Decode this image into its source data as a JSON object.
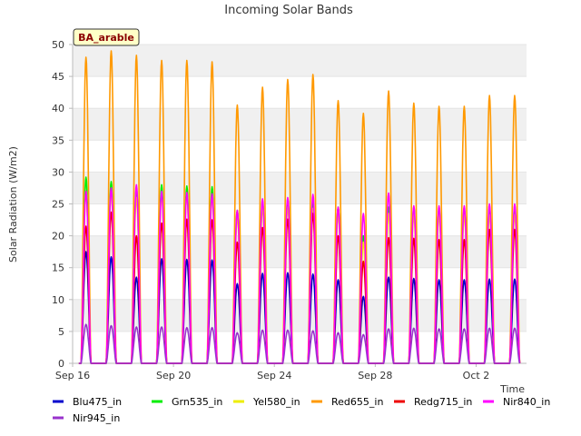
{
  "chart_data": {
    "type": "line",
    "title": "Incoming Solar Bands",
    "xlabel": "Time",
    "ylabel": "Solar Radiation (W/m2)",
    "site_tag": "BA_arable",
    "ylim": [
      0,
      50
    ],
    "yticks": [
      0,
      5,
      10,
      15,
      20,
      25,
      30,
      35,
      40,
      45,
      50
    ],
    "x_range_days": [
      "2024-09-16",
      "2024-10-04"
    ],
    "xticks": [
      {
        "date": "2024-09-16",
        "label": "Sep 16"
      },
      {
        "date": "2024-09-20",
        "label": "Sep 20"
      },
      {
        "date": "2024-09-24",
        "label": "Sep 24"
      },
      {
        "date": "2024-09-28",
        "label": "Sep 28"
      },
      {
        "date": "2024-10-02",
        "label": "Oct 2"
      }
    ],
    "grid": "horizontal-bands",
    "legend_position": "bottom",
    "daily_dates": [
      "2024-09-16",
      "2024-09-17",
      "2024-09-18",
      "2024-09-19",
      "2024-09-20",
      "2024-09-21",
      "2024-09-22",
      "2024-09-23",
      "2024-09-24",
      "2024-09-25",
      "2024-09-26",
      "2024-09-27",
      "2024-09-28",
      "2024-09-29",
      "2024-09-30",
      "2024-10-01",
      "2024-10-02",
      "2024-10-03"
    ],
    "series": [
      {
        "name": "Blu475_in",
        "color": "#0000cc",
        "daily_peak": [
          17.5,
          16.7,
          13.5,
          16.4,
          16.3,
          16.2,
          12.5,
          14.1,
          14.2,
          14.0,
          13.1,
          10.5,
          13.5,
          13.3,
          13.1,
          13.1,
          13.2,
          13.2
        ]
      },
      {
        "name": "Grn535_in",
        "color": "#00ee00",
        "daily_peak": [
          29.2,
          28.5,
          27.5,
          28.0,
          27.8,
          27.7,
          24.0,
          25.5,
          25.8,
          25.5,
          24.5,
          20.0,
          24.5,
          24.5,
          24.3,
          24.3,
          24.5,
          24.5
        ]
      },
      {
        "name": "Yel580_in",
        "color": "#eeee00",
        "daily_peak": [
          27.0,
          27.0,
          26.0,
          26.5,
          26.5,
          26.3,
          23.0,
          24.5,
          24.5,
          24.3,
          23.5,
          19.0,
          23.5,
          23.3,
          23.3,
          23.3,
          23.3,
          23.3
        ]
      },
      {
        "name": "Red655_in",
        "color": "#ff9900",
        "daily_peak": [
          48.0,
          49.0,
          48.3,
          47.5,
          47.5,
          47.3,
          40.5,
          43.3,
          44.5,
          45.3,
          41.2,
          39.2,
          42.7,
          40.8,
          40.3,
          40.3,
          42.0,
          42.0
        ]
      },
      {
        "name": "Redg715_in",
        "color": "#ee0000",
        "daily_peak": [
          21.5,
          23.7,
          20.0,
          22.0,
          22.6,
          22.5,
          19.0,
          21.3,
          22.6,
          23.5,
          20.0,
          16.0,
          19.7,
          19.6,
          19.4,
          19.4,
          21.0,
          21.0
        ]
      },
      {
        "name": "Nir840_in",
        "color": "#ff00ff",
        "daily_peak": [
          27.0,
          27.5,
          28.0,
          27.0,
          26.8,
          26.6,
          24.0,
          25.8,
          26.0,
          26.5,
          24.5,
          23.5,
          26.7,
          24.7,
          24.7,
          24.7,
          25.0,
          25.0
        ]
      },
      {
        "name": "Nir945_in",
        "color": "#9933cc",
        "daily_peak": [
          6.1,
          5.9,
          5.7,
          5.7,
          5.6,
          5.6,
          4.8,
          5.2,
          5.2,
          5.1,
          4.8,
          4.5,
          5.4,
          5.5,
          5.4,
          5.4,
          5.5,
          5.5
        ]
      }
    ]
  }
}
